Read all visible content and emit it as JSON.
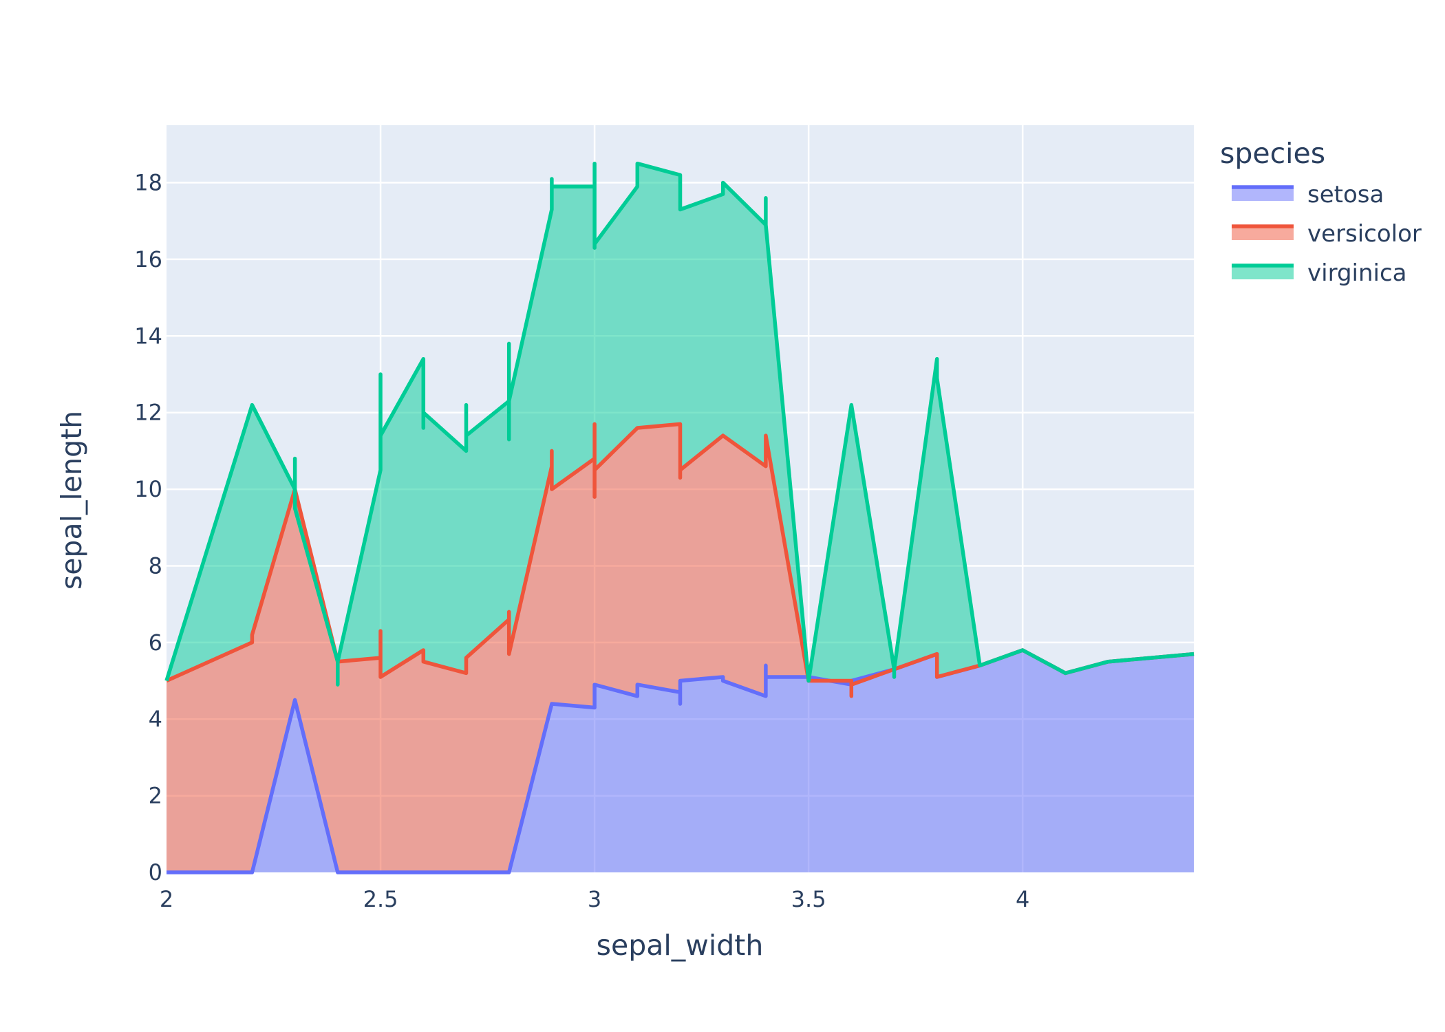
{
  "chart_data": {
    "type": "area",
    "stacked": true,
    "xlabel": "sepal_width",
    "ylabel": "sepal_length",
    "xlim": [
      2,
      4.4
    ],
    "ylim": [
      0,
      19.5
    ],
    "x_ticks": [
      2,
      2.5,
      3,
      3.5,
      4
    ],
    "x_tick_labels": [
      "2",
      "2.5",
      "3",
      "3.5",
      "4"
    ],
    "y_ticks": [
      0,
      2,
      4,
      6,
      8,
      10,
      12,
      14,
      16,
      18
    ],
    "y_tick_labels": [
      "0",
      "2",
      "4",
      "6",
      "8",
      "10",
      "12",
      "14",
      "16",
      "18"
    ],
    "grid": true,
    "legend_title": "species",
    "legend_position": "top-right",
    "colors": {
      "plot_bg": "#e5ecf6",
      "grid": "#ffffff",
      "text": "#2a3f5f"
    },
    "series": [
      {
        "name": "setosa",
        "color": "#636efa",
        "fill": "rgba(99,110,250,0.5)",
        "points": [
          [
            2.0,
            0
          ],
          [
            2.2,
            0
          ],
          [
            2.3,
            4.5
          ],
          [
            2.4,
            0
          ],
          [
            2.5,
            0
          ],
          [
            2.6,
            0
          ],
          [
            2.7,
            0
          ],
          [
            2.8,
            0
          ],
          [
            2.9,
            4.4
          ],
          [
            3.0,
            4.3
          ],
          [
            3.0,
            4.9
          ],
          [
            3.1,
            4.6
          ],
          [
            3.1,
            4.9
          ],
          [
            3.2,
            4.7
          ],
          [
            3.2,
            4.4
          ],
          [
            3.2,
            5.0
          ],
          [
            3.3,
            5.1
          ],
          [
            3.3,
            5.0
          ],
          [
            3.4,
            4.6
          ],
          [
            3.4,
            5.4
          ],
          [
            3.4,
            5.1
          ],
          [
            3.5,
            5.1
          ],
          [
            3.6,
            4.9
          ],
          [
            3.6,
            5.0
          ],
          [
            3.7,
            5.3
          ],
          [
            3.8,
            5.7
          ],
          [
            3.8,
            5.1
          ],
          [
            3.9,
            5.4
          ],
          [
            4.0,
            5.8
          ],
          [
            4.1,
            5.2
          ],
          [
            4.2,
            5.5
          ],
          [
            4.4,
            5.7
          ]
        ]
      },
      {
        "name": "versicolor",
        "color": "#ef553b",
        "fill": "rgba(239,85,59,0.5)",
        "points": [
          [
            2.0,
            5.0
          ],
          [
            2.2,
            6.0
          ],
          [
            2.2,
            6.2
          ],
          [
            2.3,
            10.0
          ],
          [
            2.4,
            5.5
          ],
          [
            2.5,
            5.6
          ],
          [
            2.5,
            6.3
          ],
          [
            2.5,
            5.1
          ],
          [
            2.6,
            5.8
          ],
          [
            2.6,
            5.5
          ],
          [
            2.7,
            5.2
          ],
          [
            2.7,
            5.6
          ],
          [
            2.8,
            6.6
          ],
          [
            2.8,
            6.8
          ],
          [
            2.8,
            5.7
          ],
          [
            2.9,
            10.6
          ],
          [
            2.9,
            11.0
          ],
          [
            2.9,
            10.0
          ],
          [
            3.0,
            10.8
          ],
          [
            3.0,
            11.7
          ],
          [
            3.0,
            9.8
          ],
          [
            3.0,
            10.5
          ],
          [
            3.1,
            11.6
          ],
          [
            3.2,
            11.7
          ],
          [
            3.2,
            10.3
          ],
          [
            3.2,
            10.5
          ],
          [
            3.3,
            11.4
          ],
          [
            3.4,
            10.6
          ],
          [
            3.4,
            11.4
          ],
          [
            3.5,
            5.0
          ],
          [
            3.6,
            5.0
          ],
          [
            3.6,
            4.6
          ],
          [
            3.6,
            4.9
          ],
          [
            3.7,
            5.3
          ],
          [
            3.8,
            5.7
          ],
          [
            3.8,
            5.1
          ],
          [
            3.9,
            5.4
          ],
          [
            4.0,
            5.8
          ],
          [
            4.1,
            5.2
          ],
          [
            4.2,
            5.5
          ],
          [
            4.4,
            5.7
          ]
        ]
      },
      {
        "name": "virginica",
        "color": "#00cc96",
        "fill": "rgba(0,204,150,0.5)",
        "points": [
          [
            2.0,
            5.0
          ],
          [
            2.2,
            12.2
          ],
          [
            2.3,
            10.0
          ],
          [
            2.3,
            10.8
          ],
          [
            2.3,
            9.5
          ],
          [
            2.4,
            5.5
          ],
          [
            2.4,
            4.9
          ],
          [
            2.4,
            5.5
          ],
          [
            2.5,
            10.5
          ],
          [
            2.5,
            13.0
          ],
          [
            2.5,
            11.4
          ],
          [
            2.6,
            13.4
          ],
          [
            2.6,
            11.6
          ],
          [
            2.6,
            12.0
          ],
          [
            2.7,
            11.0
          ],
          [
            2.7,
            12.2
          ],
          [
            2.7,
            11.4
          ],
          [
            2.8,
            12.3
          ],
          [
            2.8,
            13.8
          ],
          [
            2.8,
            11.3
          ],
          [
            2.8,
            12.3
          ],
          [
            2.9,
            17.3
          ],
          [
            2.9,
            18.1
          ],
          [
            2.9,
            17.9
          ],
          [
            3.0,
            17.9
          ],
          [
            3.0,
            18.5
          ],
          [
            3.0,
            16.3
          ],
          [
            3.0,
            16.4
          ],
          [
            3.1,
            17.9
          ],
          [
            3.1,
            18.5
          ],
          [
            3.2,
            18.2
          ],
          [
            3.2,
            17.3
          ],
          [
            3.3,
            17.7
          ],
          [
            3.3,
            18.0
          ],
          [
            3.4,
            16.9
          ],
          [
            3.4,
            17.6
          ],
          [
            3.4,
            16.9
          ],
          [
            3.5,
            5.0
          ],
          [
            3.6,
            12.2
          ],
          [
            3.7,
            5.3
          ],
          [
            3.7,
            5.1
          ],
          [
            3.7,
            5.3
          ],
          [
            3.8,
            13.4
          ],
          [
            3.8,
            12.9
          ],
          [
            3.9,
            5.4
          ],
          [
            4.0,
            5.8
          ],
          [
            4.1,
            5.2
          ],
          [
            4.2,
            5.5
          ],
          [
            4.4,
            5.7
          ]
        ]
      }
    ]
  }
}
